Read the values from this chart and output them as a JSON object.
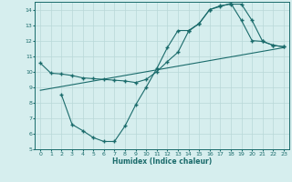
{
  "xlabel": "Humidex (Indice chaleur)",
  "bg_color": "#d6eeee",
  "line_color": "#1a6b6b",
  "grid_color": "#b8d8d8",
  "xlim": [
    -0.5,
    23.5
  ],
  "ylim": [
    5,
    14.5
  ],
  "yticks": [
    5,
    6,
    7,
    8,
    9,
    10,
    11,
    12,
    13,
    14
  ],
  "xticks": [
    0,
    1,
    2,
    3,
    4,
    5,
    6,
    7,
    8,
    9,
    10,
    11,
    12,
    13,
    14,
    15,
    16,
    17,
    18,
    19,
    20,
    21,
    22,
    23
  ],
  "line1_x": [
    0,
    1,
    2,
    3,
    4,
    5,
    6,
    7,
    8,
    9,
    10,
    11,
    12,
    13,
    14,
    15,
    16,
    17,
    18,
    19,
    20,
    21,
    22,
    23
  ],
  "line1_y": [
    10.55,
    9.9,
    9.85,
    9.75,
    9.6,
    9.55,
    9.5,
    9.45,
    9.4,
    9.3,
    9.5,
    10.0,
    10.65,
    11.25,
    12.6,
    13.1,
    14.0,
    14.25,
    14.35,
    14.35,
    13.3,
    11.95,
    11.7,
    11.6
  ],
  "line2_x": [
    2,
    3,
    4,
    5,
    6,
    7,
    8,
    9,
    10,
    11,
    12,
    13,
    14,
    15,
    16,
    17,
    18,
    19,
    20,
    21,
    22,
    23
  ],
  "line2_y": [
    8.5,
    6.6,
    6.2,
    5.75,
    5.5,
    5.5,
    6.5,
    7.85,
    9.0,
    10.2,
    11.55,
    12.65,
    12.65,
    13.1,
    14.0,
    14.2,
    14.4,
    13.3,
    12.0,
    11.95,
    11.7,
    11.6
  ],
  "line3_x": [
    0,
    23
  ],
  "line3_y": [
    8.8,
    11.55
  ]
}
